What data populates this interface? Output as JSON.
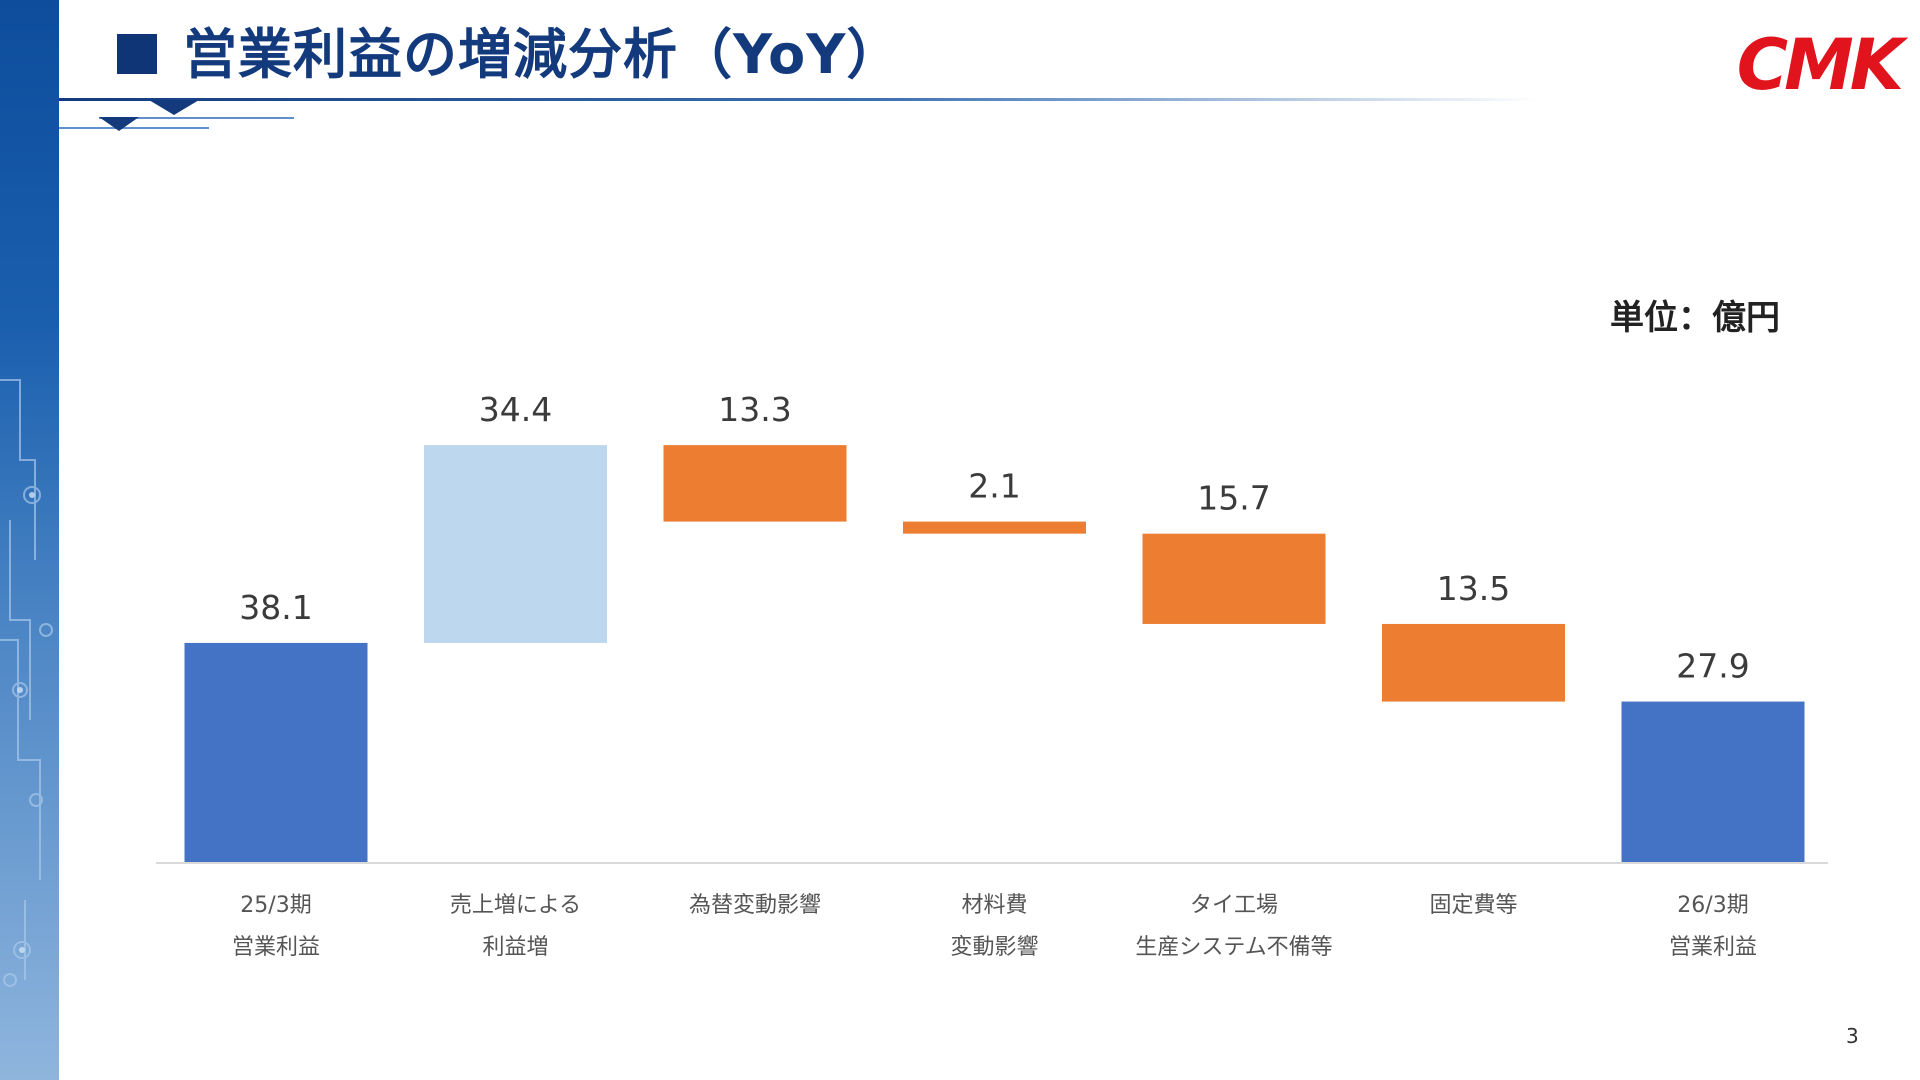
{
  "header": {
    "title": "■ 営業利益の増減分析（YoY）",
    "title_text": "営業利益の増減分析（YoY）",
    "logo_text": "CMK"
  },
  "unit_label": "単位：億円",
  "page_number": "3",
  "colors": {
    "total": "#4472c4",
    "increase": "#bdd7ee",
    "decrease": "#ed7d31",
    "title": "#143a7e",
    "logo": "#e1141d"
  },
  "chart_data": {
    "type": "bar",
    "subtype": "waterfall",
    "title": "",
    "xlabel": "",
    "ylabel": "",
    "unit": "単位：億円",
    "legend": "none",
    "grid": false,
    "ylim": [
      0,
      75
    ],
    "categories": [
      [
        "25/3期",
        "営業利益"
      ],
      [
        "売上増による",
        "利益増"
      ],
      [
        "為替変動影響"
      ],
      [
        "材料費",
        "変動影響"
      ],
      [
        "タイ工場",
        "生産システム不備等"
      ],
      [
        "固定費等"
      ],
      [
        "26/3期",
        "営業利益"
      ]
    ],
    "steps": [
      {
        "kind": "total",
        "value": 38.1,
        "label": "38.1"
      },
      {
        "kind": "increase",
        "value": 34.4,
        "label": "34.4"
      },
      {
        "kind": "decrease",
        "value": 13.3,
        "label": "13.3"
      },
      {
        "kind": "decrease",
        "value": 2.1,
        "label": "2.1"
      },
      {
        "kind": "decrease",
        "value": 15.7,
        "label": "15.7"
      },
      {
        "kind": "decrease",
        "value": 13.5,
        "label": "13.5"
      },
      {
        "kind": "total",
        "value": 27.9,
        "label": "27.9"
      }
    ]
  }
}
